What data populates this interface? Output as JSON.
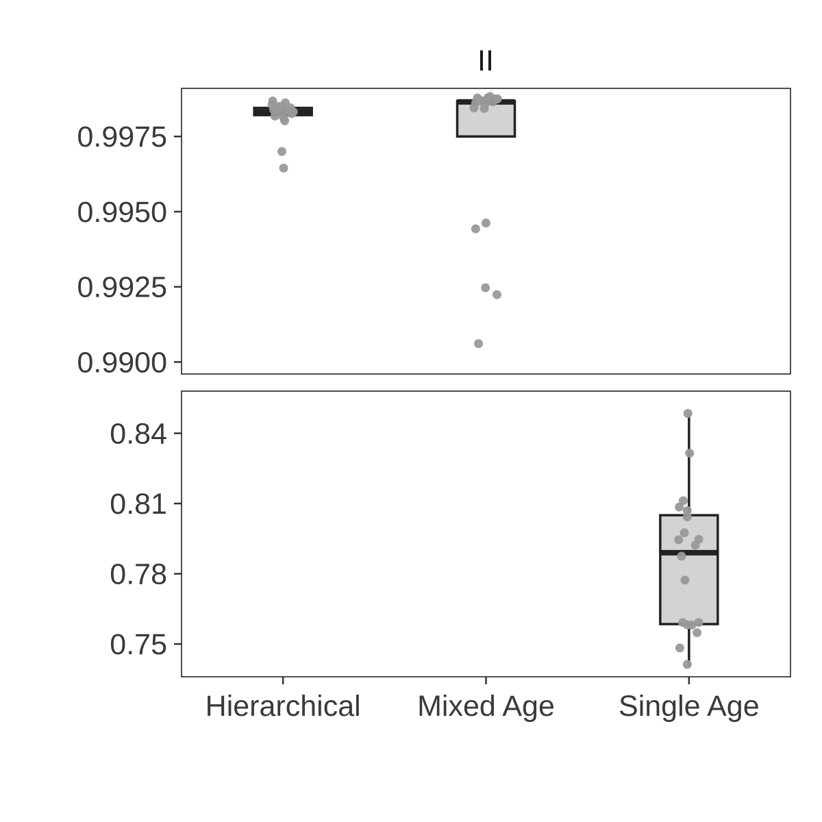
{
  "chart_data": {
    "type": "boxplot",
    "title": "II",
    "xlabel": "",
    "ylabel": "",
    "categories": [
      "Hierarchical",
      "Mixed Age",
      "Single Age"
    ],
    "grid": false,
    "box_fill": "#d3d3d3",
    "box_stroke": "#222222",
    "point_color": "#999999",
    "panels": [
      {
        "ylim": [
          0.9896,
          0.9991
        ],
        "yticks": [
          0.99,
          0.9925,
          0.995,
          0.9975
        ],
        "ytick_labels": [
          "0.9900",
          "0.9925",
          "0.9950",
          "0.9975"
        ],
        "boxes": [
          {
            "category": "Hierarchical",
            "q1": 0.99821,
            "median": 0.99832,
            "q3": 0.99845,
            "whisker_low": 0.99802,
            "whisker_high": 0.99862,
            "points": [
              [
                -0.38,
                0.99855
              ],
              [
                -0.36,
                0.99868
              ],
              [
                -0.32,
                0.99838
              ],
              [
                -0.28,
                0.99818
              ],
              [
                -0.22,
                0.99848
              ],
              [
                -0.18,
                0.99838
              ],
              [
                -0.12,
                0.9985
              ],
              [
                -0.06,
                0.99826
              ],
              [
                0.02,
                0.99812
              ],
              [
                0.06,
                0.99802
              ],
              [
                0.08,
                0.99862
              ],
              [
                0.14,
                0.99842
              ],
              [
                0.2,
                0.99835
              ],
              [
                0.26,
                0.99845
              ],
              [
                0.3,
                0.99826
              ],
              [
                0.36,
                0.99832
              ],
              [
                -0.04,
                0.997
              ],
              [
                0.02,
                0.99645
              ]
            ]
          },
          {
            "category": "Mixed Age",
            "q1": 0.9975,
            "median": 0.99865,
            "q3": 0.99868,
            "whisker_low": 0.9975,
            "whisker_high": 0.99882,
            "points": [
              [
                -0.42,
                0.99845
              ],
              [
                -0.36,
                0.99862
              ],
              [
                -0.3,
                0.99878
              ],
              [
                -0.24,
                0.99872
              ],
              [
                -0.14,
                0.99868
              ],
              [
                -0.04,
                0.99858
              ],
              [
                0.06,
                0.99878
              ],
              [
                0.14,
                0.99883
              ],
              [
                0.24,
                0.99865
              ],
              [
                0.34,
                0.99875
              ],
              [
                0.4,
                0.99875
              ],
              [
                -0.06,
                0.99843
              ],
              [
                -0.36,
                0.99443
              ],
              [
                0.0,
                0.99462
              ],
              [
                -0.02,
                0.99247
              ],
              [
                0.38,
                0.99224
              ],
              [
                -0.26,
                0.99061
              ]
            ]
          }
        ]
      },
      {
        "ylim": [
          0.736,
          0.858
        ],
        "yticks": [
          0.75,
          0.78,
          0.81,
          0.84
        ],
        "ytick_labels": [
          "0.75",
          "0.78",
          "0.81",
          "0.84"
        ],
        "boxes": [
          {
            "category": "Single Age",
            "q1": 0.7585,
            "median": 0.789,
            "q3": 0.805,
            "whisker_low": 0.7405,
            "whisker_high": 0.8475,
            "points": [
              [
                -0.04,
                0.8485
              ],
              [
                0.02,
                0.8315
              ],
              [
                -0.34,
                0.8085
              ],
              [
                -0.2,
                0.8112
              ],
              [
                -0.06,
                0.807
              ],
              [
                -0.06,
                0.8043
              ],
              [
                -0.16,
                0.7975
              ],
              [
                -0.36,
                0.7945
              ],
              [
                0.22,
                0.7922
              ],
              [
                0.34,
                0.7947
              ],
              [
                -0.26,
                0.7875
              ],
              [
                -0.14,
                0.7773
              ],
              [
                -0.22,
                0.7592
              ],
              [
                -0.06,
                0.7582
              ],
              [
                0.34,
                0.7592
              ],
              [
                0.28,
                0.7548
              ],
              [
                -0.32,
                0.7483
              ],
              [
                -0.06,
                0.7413
              ],
              [
                0.1,
                0.7581
              ]
            ]
          }
        ]
      }
    ]
  }
}
